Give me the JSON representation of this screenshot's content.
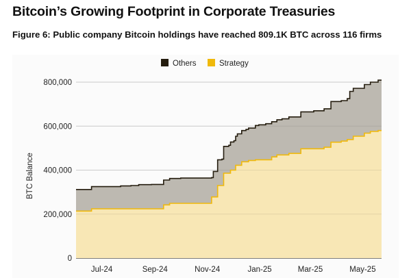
{
  "header": {
    "title": "Bitcoin’s Growing Footprint in Corporate Treasuries",
    "subtitle": "Figure 6: Public company Bitcoin holdings have reached 809.1K BTC across 116 firms"
  },
  "chart_data": {
    "type": "area",
    "stacked": true,
    "step": true,
    "title": "",
    "xlabel": "",
    "ylabel": "BTC Balance",
    "xlim": [
      "2024-06-01",
      "2025-05-23"
    ],
    "ylim": [
      0,
      800000
    ],
    "yticks": [
      0,
      200000,
      400000,
      600000,
      800000
    ],
    "ytick_labels": [
      "0",
      "200,000",
      "400,000",
      "600,000",
      "800,000"
    ],
    "xticks": [
      "2024-07-01",
      "2024-09-01",
      "2024-11-01",
      "2025-01-01",
      "2025-03-01",
      "2025-05-01"
    ],
    "xtick_labels": [
      "Jul-24",
      "Sep-24",
      "Nov-24",
      "Jan-25",
      "Mar-25",
      "May-25"
    ],
    "grid": true,
    "legend_position": "top-center",
    "x": [
      "2024-06-01",
      "2024-06-19",
      "2024-07-23",
      "2024-08-04",
      "2024-08-13",
      "2024-08-28",
      "2024-09-11",
      "2024-09-18",
      "2024-10-01",
      "2024-11-06",
      "2024-11-08",
      "2024-11-13",
      "2024-11-18",
      "2024-11-20",
      "2024-11-26",
      "2024-11-28",
      "2024-12-02",
      "2024-12-04",
      "2024-12-06",
      "2024-12-11",
      "2024-12-16",
      "2024-12-19",
      "2024-12-27",
      "2024-12-31",
      "2025-01-08",
      "2025-01-15",
      "2025-01-21",
      "2025-01-27",
      "2025-02-04",
      "2025-02-18",
      "2025-03-05",
      "2025-03-17",
      "2025-03-25",
      "2025-04-06",
      "2025-04-13",
      "2025-04-16",
      "2025-04-20",
      "2025-05-03",
      "2025-05-10",
      "2025-05-19"
    ],
    "series": [
      {
        "name": "Strategy",
        "color": "#f0b90b",
        "fill": "#f8e7b5",
        "values": [
          214000,
          224000,
          224000,
          224000,
          224000,
          224000,
          242000,
          249000,
          249000,
          278000,
          278000,
          330000,
          330000,
          386000,
          386000,
          400000,
          400000,
          422000,
          422000,
          438000,
          438000,
          444000,
          447000,
          447000,
          447000,
          460000,
          469000,
          469000,
          476000,
          497000,
          497000,
          504000,
          527000,
          532000,
          539000,
          539000,
          554000,
          568000,
          576000,
          580000
        ]
      },
      {
        "name": "Others",
        "color": "#241c0e",
        "fill": "#bdb9b1",
        "values": [
          98000,
          101000,
          104000,
          106000,
          110000,
          111000,
          113000,
          113000,
          115000,
          88000,
          116000,
          117000,
          120000,
          122000,
          127000,
          128000,
          134000,
          132000,
          143000,
          142000,
          147000,
          147000,
          156000,
          159000,
          164000,
          160000,
          160000,
          164000,
          166000,
          168000,
          173000,
          175000,
          185000,
          184000,
          186000,
          219000,
          218000,
          221000,
          224000,
          229100
        ]
      }
    ]
  }
}
